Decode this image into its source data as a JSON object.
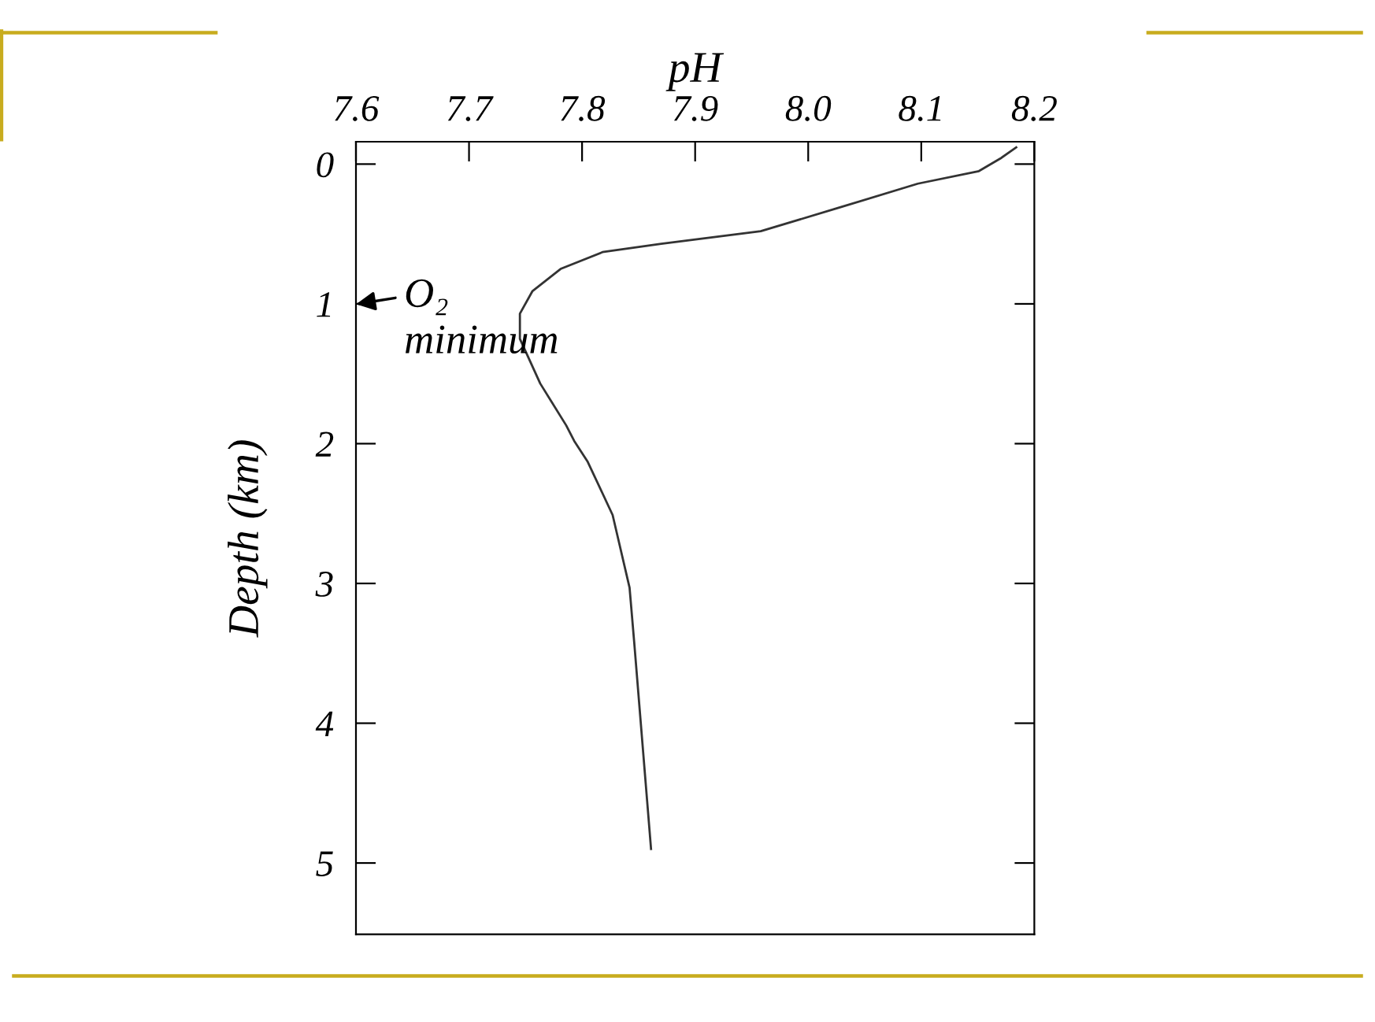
{
  "chart_data": {
    "type": "line",
    "xlabel": "pH",
    "ylabel": "Depth (km)",
    "series": [
      {
        "color": "#333333",
        "x": [
          8.184,
          8.17,
          8.151,
          8.097,
          8.028,
          7.958,
          7.87,
          7.818,
          7.781,
          7.756,
          7.745,
          7.745,
          7.763,
          7.786,
          7.793,
          7.805,
          7.827,
          7.842,
          7.846,
          7.861
        ],
        "values": [
          -0.12,
          -0.04,
          0.05,
          0.14,
          0.31,
          0.48,
          0.57,
          0.63,
          0.75,
          0.91,
          1.07,
          1.25,
          1.57,
          1.87,
          1.98,
          2.13,
          2.51,
          3.03,
          3.41,
          4.9
        ]
      }
    ],
    "xlim": [
      7.6,
      8.2
    ],
    "xticks": [
      7.6,
      7.7,
      7.8,
      7.9,
      {
        "value": 8.0,
        "label": "8.0"
      },
      8.1,
      8.2
    ],
    "ylim": [
      5.51,
      -0.16
    ],
    "yticks": [
      0,
      1,
      2,
      3,
      4,
      5
    ],
    "annotations": [
      "O₂\nminimum"
    ],
    "grid": false,
    "legend": false,
    "marker": "none",
    "line_style": "solid"
  }
}
